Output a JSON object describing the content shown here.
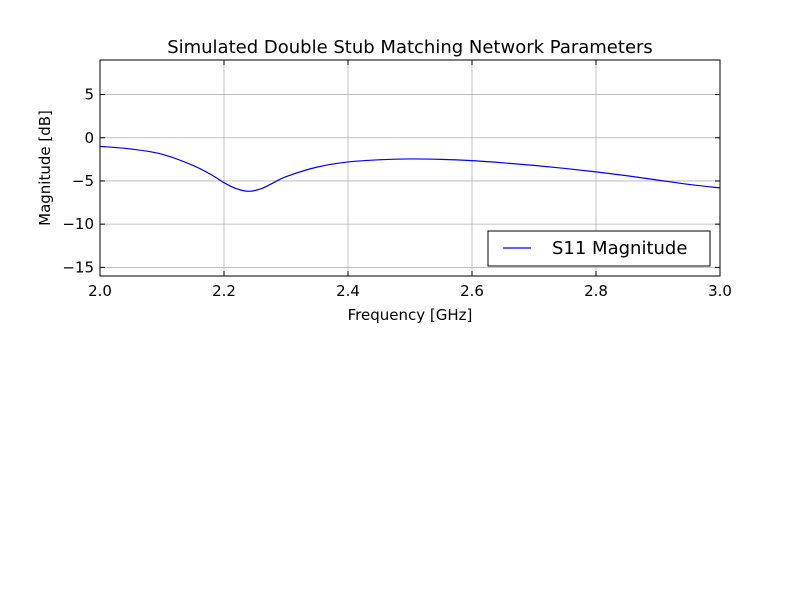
{
  "chart_data": {
    "type": "line",
    "title": "Simulated Double Stub Matching Network Parameters",
    "xlabel": "Frequency [GHz]",
    "ylabel": "Magnitude [dB]",
    "xlim": [
      2.0,
      3.0
    ],
    "ylim": [
      -16,
      9
    ],
    "xticks": [
      2.0,
      2.2,
      2.4,
      2.6,
      2.8,
      3.0
    ],
    "xtick_labels": [
      "2.0",
      "2.2",
      "2.4",
      "2.6",
      "2.8",
      "3.0"
    ],
    "yticks": [
      5,
      0,
      -5,
      -10,
      -15
    ],
    "ytick_labels": [
      "5",
      "0",
      "−5",
      "−10",
      "−15"
    ],
    "grid": true,
    "legend_position": "lower-right",
    "series": [
      {
        "name": "S11 Magnitude",
        "color": "#0000ff",
        "x": [
          2.0,
          2.05,
          2.1,
          2.15,
          2.18,
          2.2,
          2.22,
          2.24,
          2.26,
          2.28,
          2.3,
          2.35,
          2.4,
          2.45,
          2.5,
          2.55,
          2.6,
          2.65,
          2.7,
          2.75,
          2.8,
          2.85,
          2.9,
          2.95,
          3.0
        ],
        "y": [
          -1.0,
          -1.3,
          -1.9,
          -3.2,
          -4.3,
          -5.2,
          -5.9,
          -6.2,
          -5.9,
          -5.2,
          -4.5,
          -3.4,
          -2.8,
          -2.55,
          -2.45,
          -2.5,
          -2.65,
          -2.9,
          -3.2,
          -3.55,
          -3.95,
          -4.4,
          -4.9,
          -5.4,
          -5.8
        ]
      }
    ]
  }
}
